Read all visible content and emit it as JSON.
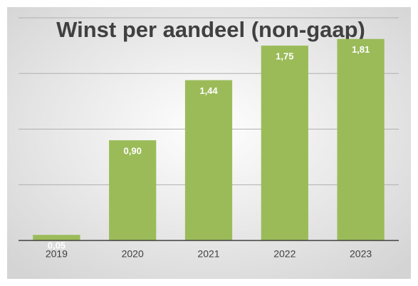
{
  "chart_data": {
    "type": "bar",
    "title": "Winst per aandeel (non-gaap)",
    "categories": [
      "2019",
      "2020",
      "2021",
      "2022",
      "2023"
    ],
    "values": [
      0.05,
      0.9,
      1.44,
      1.75,
      1.81
    ],
    "value_labels": [
      "0,05",
      "0,90",
      "1,44",
      "1,75",
      "1,81"
    ],
    "color": "#9bbb59",
    "ylim": [
      0,
      2
    ],
    "yticks": [
      0,
      0.5,
      1,
      1.5,
      2
    ],
    "grid": true
  }
}
